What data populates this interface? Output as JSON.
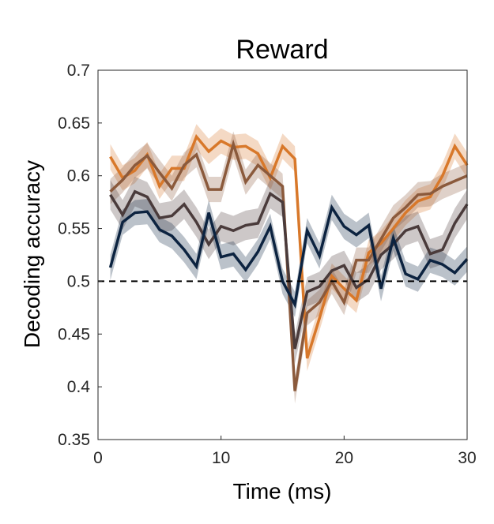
{
  "chart_data": {
    "type": "line",
    "title": "Reward",
    "xlabel": "Time (ms)",
    "ylabel": "Decoding accuracy",
    "xlim": [
      0,
      30
    ],
    "ylim": [
      0.35,
      0.7
    ],
    "xticks": [
      0,
      10,
      20,
      30
    ],
    "xtick_labels": [
      "0",
      "10",
      "20",
      "30"
    ],
    "yticks": [
      0.35,
      0.4,
      0.45,
      0.5,
      0.55,
      0.6,
      0.65,
      0.7
    ],
    "ytick_labels": [
      "0.35",
      "0.4",
      "0.45",
      "0.5",
      "0.55",
      "0.6",
      "0.65",
      "0.7"
    ],
    "grid": false,
    "reference_line": {
      "y": 0.5,
      "style": "dashed",
      "color": "#000000"
    },
    "x": [
      1,
      2,
      3,
      4,
      5,
      6,
      7,
      8,
      9,
      10,
      11,
      12,
      13,
      14,
      15,
      16,
      17,
      18,
      19,
      20,
      21,
      22,
      23,
      24,
      25,
      26,
      27,
      28,
      29,
      30
    ],
    "series": [
      {
        "color": "#D8782A",
        "values": [
          0.618,
          0.598,
          0.605,
          0.62,
          0.59,
          0.607,
          0.607,
          0.637,
          0.623,
          0.633,
          0.627,
          0.628,
          0.621,
          0.598,
          0.628,
          0.616,
          0.427,
          0.465,
          0.505,
          0.493,
          0.482,
          0.527,
          0.536,
          0.55,
          0.565,
          0.576,
          0.58,
          0.6,
          0.628,
          0.61
        ],
        "band": 0.012
      },
      {
        "color": "#8B5A3C",
        "values": [
          0.585,
          0.596,
          0.61,
          0.619,
          0.603,
          0.588,
          0.61,
          0.62,
          0.587,
          0.587,
          0.63,
          0.594,
          0.61,
          0.6,
          0.59,
          0.396,
          0.47,
          0.48,
          0.5,
          0.48,
          0.52,
          0.52,
          0.54,
          0.56,
          0.57,
          0.582,
          0.583,
          0.59,
          0.595,
          0.6
        ],
        "band": 0.012
      },
      {
        "color": "#4A3B3B",
        "values": [
          0.582,
          0.563,
          0.585,
          0.58,
          0.56,
          0.562,
          0.573,
          0.556,
          0.535,
          0.552,
          0.548,
          0.553,
          0.555,
          0.583,
          0.575,
          0.436,
          0.49,
          0.495,
          0.51,
          0.515,
          0.494,
          0.502,
          0.525,
          0.535,
          0.548,
          0.552,
          0.526,
          0.53,
          0.555,
          0.573
        ],
        "band": 0.014
      },
      {
        "color": "#0C2340",
        "values": [
          0.513,
          0.556,
          0.565,
          0.566,
          0.549,
          0.543,
          0.53,
          0.514,
          0.565,
          0.523,
          0.526,
          0.511,
          0.528,
          0.552,
          0.5,
          0.478,
          0.548,
          0.524,
          0.57,
          0.552,
          0.544,
          0.553,
          0.493,
          0.541,
          0.507,
          0.502,
          0.52,
          0.516,
          0.508,
          0.521
        ],
        "band": 0.012
      }
    ]
  }
}
